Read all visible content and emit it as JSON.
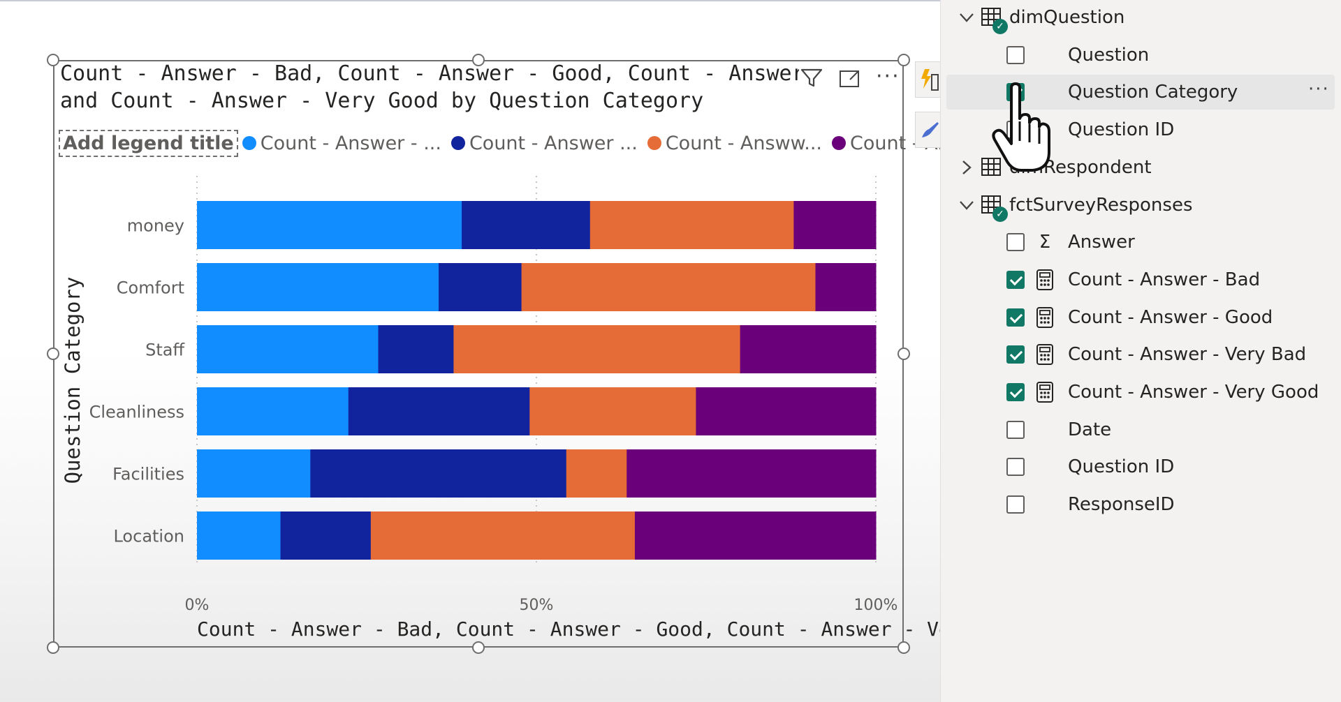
{
  "chart": {
    "title_line1": "Count - Answer - Bad, Count - Answer - Good, Count - Answer - Ve",
    "title_line2": "and Count - Answer - Very Good by Question Category",
    "legend_title": "Add legend title",
    "legend_items": [
      "Count - Answer - ...",
      "Count - Answer ...",
      "Count - Answw...",
      "Count - Ans..."
    ],
    "y_axis_label": "Question Category",
    "x_axis_label": "Count - Answer - Bad, Count - Answer - Good, Count - Answer - Very ...",
    "header_icons": [
      "filter-icon",
      "focus-mode-icon",
      "more-options-icon"
    ]
  },
  "chart_data": {
    "type": "bar",
    "orientation": "horizontal",
    "stacked": "100%",
    "title": "Count - Answer - Bad, Count - Answer - Good, Count - Answer - Ve and Count - Answer - Very Good by Question Category",
    "xlabel": "Count - Answer - Bad, Count - Answer - Good, Count - Answer - Very ...",
    "ylabel": "Question Category",
    "categories": [
      "money",
      "Comfort",
      "Staff",
      "Cleanliness",
      "Facilities",
      "Location"
    ],
    "series": [
      {
        "name": "Count - Answer - ...",
        "color": "#118dff",
        "values": [
          39,
          35.6,
          26.7,
          22.3,
          16.7,
          12.3
        ]
      },
      {
        "name": "Count - Answer ...",
        "color": "#12239e",
        "values": [
          18.9,
          12.2,
          11.1,
          26.7,
          37.7,
          13.3
        ]
      },
      {
        "name": "Count - Answw...",
        "color": "#e66c37",
        "values": [
          30,
          43.3,
          42.2,
          24.5,
          8.9,
          38.9
        ]
      },
      {
        "name": "Count - Ans...",
        "color": "#6b007b",
        "values": [
          12.1,
          8.9,
          20,
          26.5,
          36.7,
          35.5
        ]
      }
    ],
    "x_ticks": [
      "0%",
      "50%",
      "100%"
    ],
    "xlim": [
      0,
      100
    ],
    "grid": "vertical-dotted",
    "legend_position": "top-left"
  },
  "toolbar": {
    "buttons": [
      "bolt-chart-icon",
      "paint-brush-icon"
    ]
  },
  "fields": {
    "tables": [
      {
        "name": "dimQuestion",
        "expanded": true,
        "has_checked": true,
        "fields": [
          {
            "label": "Question",
            "checked": false,
            "icon": ""
          },
          {
            "label": "Question Category",
            "checked": true,
            "icon": ""
          },
          {
            "label": "Question ID",
            "checked": false,
            "icon": ""
          }
        ]
      },
      {
        "name": "dimRespondent",
        "expanded": false,
        "has_checked": false,
        "fields": []
      },
      {
        "name": "fctSurveyResponses",
        "expanded": true,
        "has_checked": true,
        "fields": [
          {
            "label": "Answer",
            "checked": false,
            "icon": "sigma-icon"
          },
          {
            "label": "Count - Answer - Bad",
            "checked": true,
            "icon": "calculator-icon"
          },
          {
            "label": "Count - Answer - Good",
            "checked": true,
            "icon": "calculator-icon"
          },
          {
            "label": "Count - Answer - Very Bad",
            "checked": true,
            "icon": "calculator-icon"
          },
          {
            "label": "Count - Answer - Very Good",
            "checked": true,
            "icon": "calculator-icon"
          },
          {
            "label": "Date",
            "checked": false,
            "icon": ""
          },
          {
            "label": "Question ID",
            "checked": false,
            "icon": ""
          },
          {
            "label": "ResponseID",
            "checked": false,
            "icon": ""
          }
        ]
      }
    ],
    "more_label": "···",
    "sigma": "Σ"
  },
  "colors": {
    "accent": "#117865",
    "series": [
      "#118dff",
      "#12239e",
      "#e66c37",
      "#6b007b"
    ]
  }
}
